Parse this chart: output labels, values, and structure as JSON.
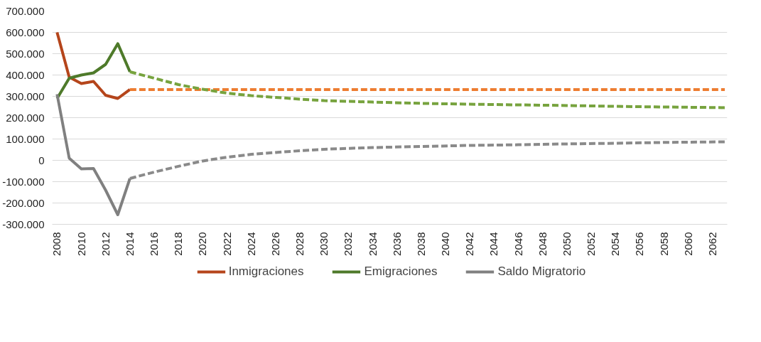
{
  "chart_data": {
    "type": "line",
    "x": [
      2008,
      2009,
      2010,
      2011,
      2012,
      2013,
      2014
    ],
    "series": [
      {
        "name": "Inmigraciones",
        "color": "#b5451b",
        "line_style": "solid",
        "values": [
          600000,
          390000,
          360000,
          370000,
          305000,
          290000,
          332000
        ]
      },
      {
        "name": "Emigraciones",
        "color": "#4e7a2a",
        "line_style": "solid",
        "values": [
          290000,
          385000,
          400000,
          410000,
          450000,
          547000,
          415000
        ]
      },
      {
        "name": "Saldo Migratorio",
        "color": "#808080",
        "line_style": "solid",
        "values": [
          310000,
          10000,
          -40000,
          -38000,
          -140000,
          -255000,
          -85000
        ]
      },
      {
        "color": "#ed7d31",
        "line_style": "dashed",
        "x": [
          2014,
          2063
        ],
        "values": [
          332000,
          332000
        ]
      },
      {
        "color": "#77a33e",
        "line_style": "dashed",
        "x": [
          2014,
          2016,
          2018,
          2020,
          2022,
          2024,
          2026,
          2028,
          2030,
          2034,
          2038,
          2042,
          2046,
          2050,
          2054,
          2058,
          2063
        ],
        "values": [
          415000,
          385000,
          355000,
          333000,
          315000,
          303000,
          295000,
          287000,
          280000,
          273000,
          267000,
          263000,
          260000,
          257000,
          253000,
          250000,
          247000
        ]
      },
      {
        "color": "#8a8a8a",
        "line_style": "dashed",
        "x": [
          2014,
          2016,
          2018,
          2020,
          2022,
          2024,
          2026,
          2028,
          2030,
          2034,
          2038,
          2042,
          2046,
          2050,
          2054,
          2058,
          2063
        ],
        "values": [
          -85000,
          -55000,
          -28000,
          -3000,
          15000,
          28000,
          37000,
          45000,
          52000,
          60000,
          65000,
          70000,
          73000,
          77000,
          80000,
          84000,
          87000
        ]
      }
    ],
    "xlim": [
      2007.6,
      2063.2
    ],
    "xticks": [
      2008,
      2010,
      2012,
      2014,
      2016,
      2018,
      2020,
      2022,
      2024,
      2026,
      2028,
      2030,
      2032,
      2034,
      2036,
      2038,
      2040,
      2042,
      2044,
      2046,
      2048,
      2050,
      2052,
      2054,
      2056,
      2058,
      2060,
      2062
    ],
    "ylim": [
      -300000,
      700000
    ],
    "yticks": [
      {
        "value": -300000,
        "label": "-300.000"
      },
      {
        "value": -200000,
        "label": "-200.000"
      },
      {
        "value": -100000,
        "label": "-100.000"
      },
      0,
      {
        "value": 100000,
        "label": "100.000"
      },
      {
        "value": 200000,
        "label": "200.000"
      },
      {
        "value": 300000,
        "label": "300.000"
      },
      {
        "value": 400000,
        "label": "400.000"
      },
      {
        "value": 500000,
        "label": "500.000"
      },
      {
        "value": 600000,
        "label": "600.000"
      },
      {
        "value": 700000,
        "label": "700.000"
      }
    ],
    "grid": "y",
    "legend": "bottom",
    "marker": "none"
  }
}
